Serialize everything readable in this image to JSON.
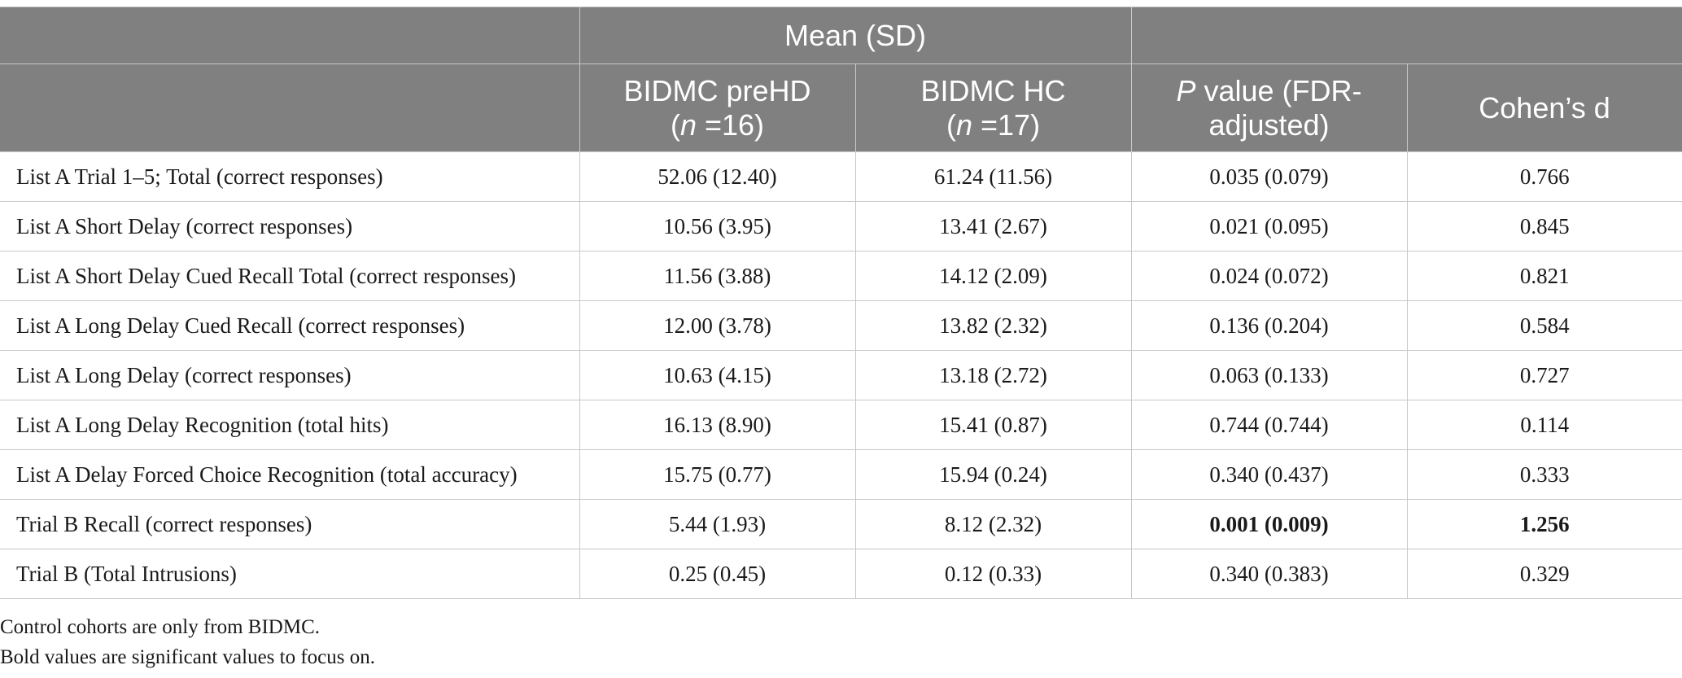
{
  "table": {
    "group_header": "Mean (SD)",
    "columns": [
      {
        "line1": "BIDMC preHD",
        "n_label": "n",
        "n_value": " =16"
      },
      {
        "line1": "BIDMC HC",
        "n_label": "n",
        "n_value": " =17"
      },
      {
        "p_italic": "P",
        "p_rest": " value (FDR-",
        "line2": "adjusted)"
      },
      {
        "line1": "Cohen’s d"
      }
    ],
    "rows": [
      {
        "label": "List A Trial 1–5; Total (correct responses)",
        "prehd": "52.06 (12.40)",
        "hc": "61.24 (11.56)",
        "p": "0.035 (0.079)",
        "d": "0.766",
        "bold": false
      },
      {
        "label": "List A Short Delay (correct responses)",
        "prehd": "10.56 (3.95)",
        "hc": "13.41 (2.67)",
        "p": "0.021 (0.095)",
        "d": "0.845",
        "bold": false
      },
      {
        "label": "List A Short Delay Cued Recall Total (correct responses)",
        "prehd": "11.56 (3.88)",
        "hc": "14.12 (2.09)",
        "p": "0.024 (0.072)",
        "d": "0.821",
        "bold": false
      },
      {
        "label": "List A Long Delay Cued Recall (correct responses)",
        "prehd": "12.00 (3.78)",
        "hc": "13.82 (2.32)",
        "p": "0.136 (0.204)",
        "d": "0.584",
        "bold": false
      },
      {
        "label": "List A Long Delay (correct responses)",
        "prehd": "10.63 (4.15)",
        "hc": "13.18 (2.72)",
        "p": "0.063 (0.133)",
        "d": "0.727",
        "bold": false
      },
      {
        "label": "List A Long Delay Recognition (total hits)",
        "prehd": "16.13 (8.90)",
        "hc": "15.41 (0.87)",
        "p": "0.744 (0.744)",
        "d": "0.114",
        "bold": false
      },
      {
        "label": "List A Delay Forced Choice Recognition (total accuracy)",
        "prehd": "15.75 (0.77)",
        "hc": "15.94 (0.24)",
        "p": "0.340 (0.437)",
        "d": "0.333",
        "bold": false
      },
      {
        "label": "Trial B Recall (correct responses)",
        "prehd": "5.44 (1.93)",
        "hc": "8.12 (2.32)",
        "p": "0.001 (0.009)",
        "d": "1.256",
        "bold": true
      },
      {
        "label": "Trial B (Total Intrusions)",
        "prehd": "0.25 (0.45)",
        "hc": "0.12 (0.33)",
        "p": "0.340 (0.383)",
        "d": "0.329",
        "bold": false
      }
    ]
  },
  "notes": [
    "Control cohorts are only from BIDMC.",
    "Bold values are significant values to focus on."
  ],
  "colors": {
    "header_bg": "#808080",
    "header_text": "#ffffff",
    "grid": "#c8c8c8"
  }
}
